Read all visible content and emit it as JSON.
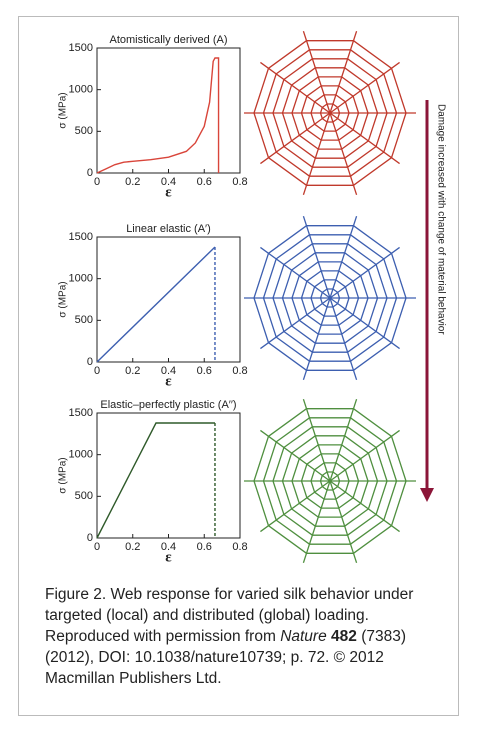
{
  "chart_data": [
    {
      "type": "line",
      "title": "Atomistically derived (A)",
      "xlabel": "ε",
      "ylabel": "σ (MPa)",
      "xlim": [
        0,
        0.8
      ],
      "ylim": [
        0,
        1500
      ],
      "xticks": [
        0,
        0.2,
        0.4,
        0.6,
        0.8
      ],
      "yticks": [
        0,
        500,
        1000,
        1500
      ],
      "series": [
        {
          "color": "#d9453a",
          "dashed": false,
          "x": [
            0,
            0.05,
            0.1,
            0.15,
            0.2,
            0.3,
            0.4,
            0.5,
            0.55,
            0.6,
            0.63,
            0.65,
            0.66,
            0.68,
            0.68
          ],
          "values": [
            0,
            50,
            100,
            130,
            140,
            160,
            190,
            260,
            360,
            560,
            850,
            1340,
            1380,
            1380,
            0
          ]
        }
      ]
    },
    {
      "type": "line",
      "title": "Linear elastic (A′)",
      "xlabel": "ε",
      "ylabel": "σ (MPa)",
      "xlim": [
        0,
        0.8
      ],
      "ylim": [
        0,
        1500
      ],
      "xticks": [
        0,
        0.2,
        0.4,
        0.6,
        0.8
      ],
      "yticks": [
        0,
        500,
        1000,
        1500
      ],
      "series": [
        {
          "color": "#3d5fb0",
          "dashed": false,
          "x": [
            0,
            0.66
          ],
          "values": [
            0,
            1380
          ]
        },
        {
          "color": "#3d5fb0",
          "dashed": true,
          "x": [
            0.66,
            0.66
          ],
          "values": [
            1380,
            0
          ]
        }
      ]
    },
    {
      "type": "line",
      "title": "Elastic–perfectly plastic (A′′)",
      "xlabel": "ε",
      "ylabel": "σ (MPa)",
      "xlim": [
        0,
        0.8
      ],
      "ylim": [
        0,
        1500
      ],
      "xticks": [
        0,
        0.2,
        0.4,
        0.6,
        0.8
      ],
      "yticks": [
        0,
        500,
        1000,
        1500
      ],
      "series": [
        {
          "color": "#2f5a2a",
          "dashed": false,
          "x": [
            0,
            0.33,
            0.66
          ],
          "values": [
            0,
            1380,
            1380
          ]
        },
        {
          "color": "#2f5a2a",
          "dashed": true,
          "x": [
            0.66,
            0.66
          ],
          "values": [
            1380,
            0
          ]
        }
      ]
    }
  ],
  "figure": {
    "arrow_label": "Damage increased with change of material behavior",
    "caption": [
      "Figure 2. Web response for varied silk behavior under targeted (local) and distributed (global) loading. Reproduced with permission from",
      "Nature",
      "482",
      "(7383) (2012), DOI: 10.1038/nature10739; p. 72. © 2012 Macmillan Publishers Ltd."
    ]
  }
}
